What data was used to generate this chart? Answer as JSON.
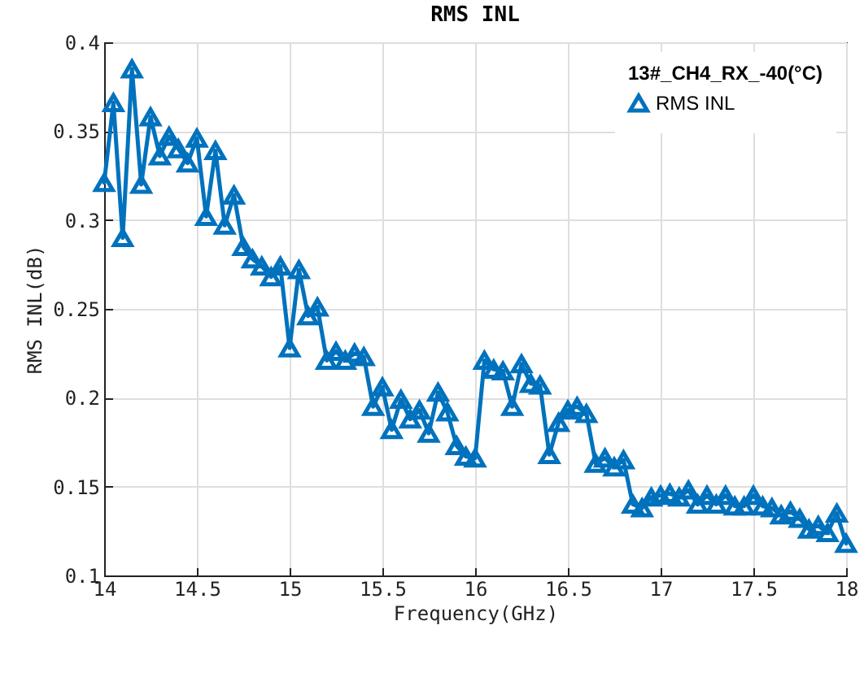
{
  "chart_data": {
    "type": "line",
    "title": "RMS INL",
    "xlabel": "Frequency(GHz)",
    "ylabel": "RMS INL(dB)",
    "legend_title": "13#_CH4_RX_-40(°C)",
    "x": [
      14.0,
      14.05,
      14.1,
      14.15,
      14.2,
      14.25,
      14.3,
      14.35,
      14.4,
      14.45,
      14.5,
      14.55,
      14.6,
      14.65,
      14.7,
      14.75,
      14.8,
      14.85,
      14.9,
      14.95,
      15.0,
      15.05,
      15.1,
      15.15,
      15.2,
      15.25,
      15.3,
      15.35,
      15.4,
      15.45,
      15.5,
      15.55,
      15.6,
      15.65,
      15.7,
      15.75,
      15.8,
      15.85,
      15.9,
      15.95,
      16.0,
      16.05,
      16.1,
      16.15,
      16.2,
      16.25,
      16.3,
      16.35,
      16.4,
      16.45,
      16.5,
      16.55,
      16.6,
      16.65,
      16.7,
      16.75,
      16.8,
      16.85,
      16.9,
      16.95,
      17.0,
      17.05,
      17.1,
      17.15,
      17.2,
      17.25,
      17.3,
      17.35,
      17.4,
      17.45,
      17.5,
      17.55,
      17.6,
      17.65,
      17.7,
      17.75,
      17.8,
      17.85,
      17.9,
      17.95,
      18.0
    ],
    "series": [
      {
        "name": "RMS INL",
        "color": "#0072bd",
        "values": [
          0.321,
          0.366,
          0.29,
          0.385,
          0.32,
          0.358,
          0.336,
          0.347,
          0.34,
          0.332,
          0.346,
          0.302,
          0.339,
          0.297,
          0.314,
          0.285,
          0.278,
          0.274,
          0.268,
          0.274,
          0.228,
          0.272,
          0.246,
          0.251,
          0.221,
          0.226,
          0.221,
          0.225,
          0.223,
          0.195,
          0.206,
          0.182,
          0.199,
          0.188,
          0.193,
          0.18,
          0.203,
          0.192,
          0.173,
          0.167,
          0.166,
          0.221,
          0.216,
          0.215,
          0.195,
          0.219,
          0.208,
          0.207,
          0.168,
          0.186,
          0.193,
          0.195,
          0.191,
          0.163,
          0.166,
          0.161,
          0.165,
          0.14,
          0.138,
          0.144,
          0.145,
          0.146,
          0.144,
          0.148,
          0.14,
          0.145,
          0.14,
          0.145,
          0.139,
          0.139,
          0.145,
          0.139,
          0.138,
          0.134,
          0.136,
          0.132,
          0.126,
          0.128,
          0.124,
          0.135,
          0.118
        ]
      }
    ],
    "xlim": [
      14,
      18
    ],
    "xticks": [
      14,
      14.5,
      15,
      15.5,
      16,
      16.5,
      17,
      17.5,
      18
    ],
    "ylim": [
      0.1,
      0.4
    ],
    "yticks": [
      0.1,
      0.15,
      0.2,
      0.25,
      0.3,
      0.35,
      0.4
    ],
    "grid": true,
    "legend": "top right",
    "marker": "triangle",
    "line_style": "solid"
  }
}
